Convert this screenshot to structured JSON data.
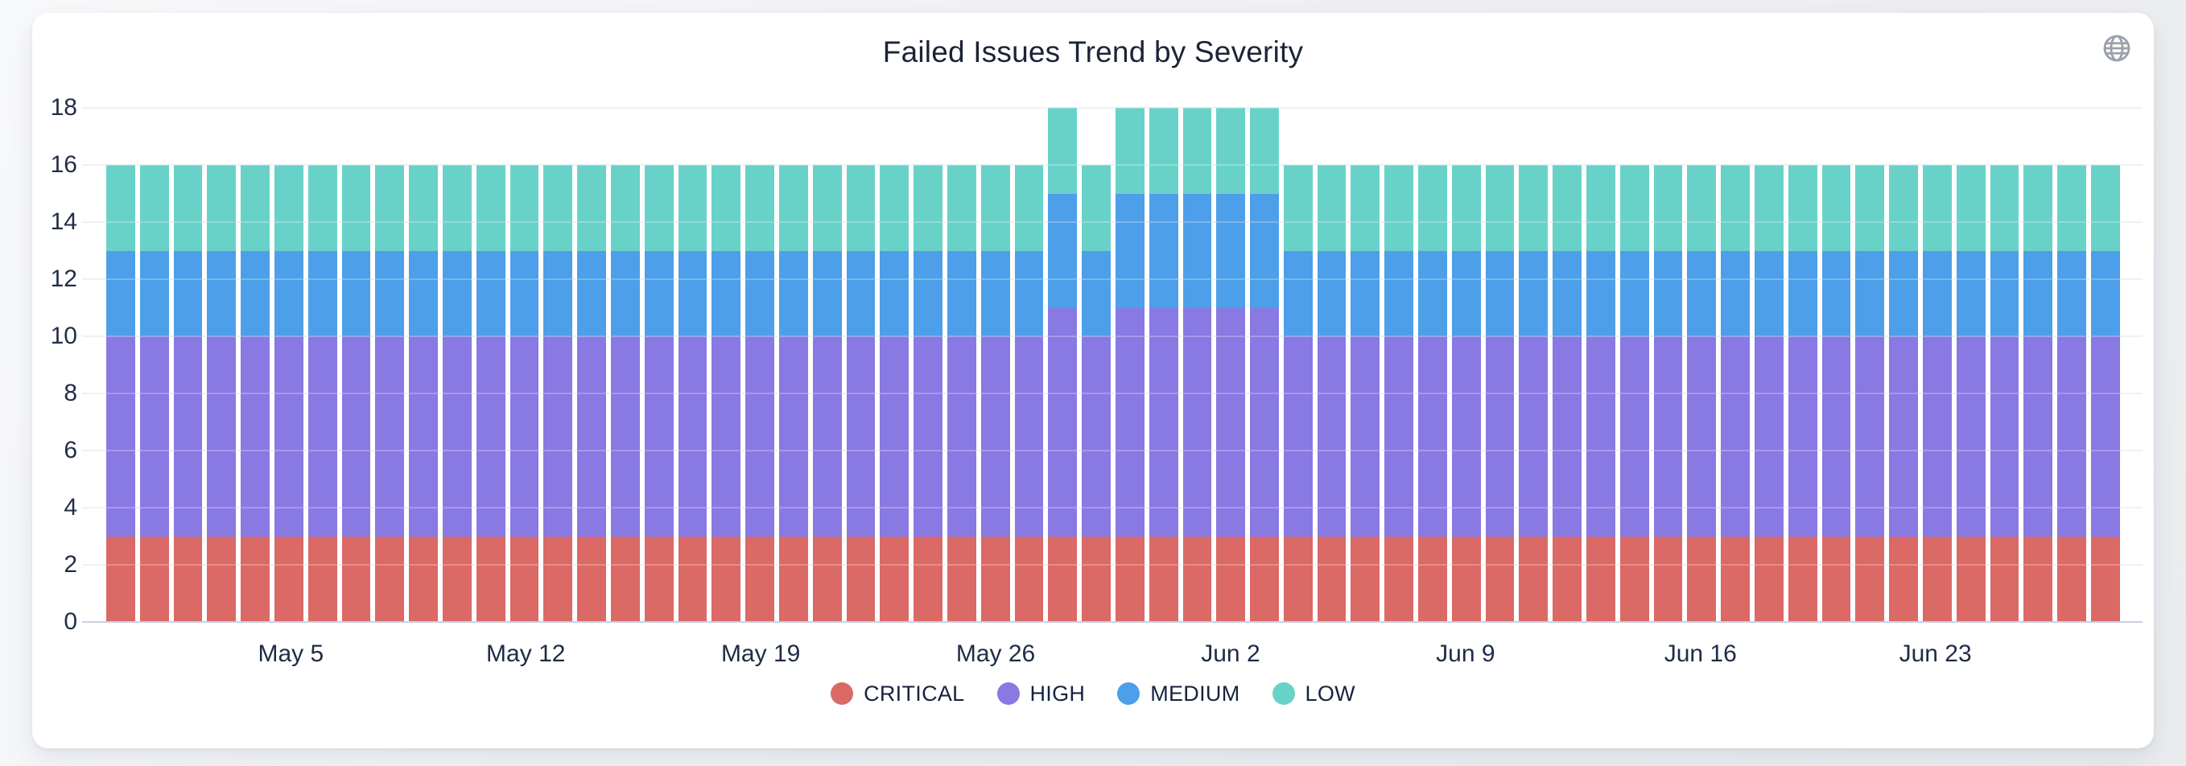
{
  "chart": {
    "title": "Failed Issues Trend by Severity",
    "background_color": "#ffffff",
    "gridline_color": "#ebecf0",
    "axis_line_color": "#c9d0e2",
    "text_color": "#202c46",
    "globe_icon_color": "#9aa1ab"
  },
  "chart_data": {
    "type": "bar",
    "stacked": true,
    "title": "Failed Issues Trend by Severity",
    "xlabel": "",
    "ylabel": "",
    "ylim": [
      0,
      18
    ],
    "yticks": [
      0,
      2,
      4,
      6,
      8,
      10,
      12,
      14,
      16,
      18
    ],
    "grid": true,
    "legend_position": "bottom",
    "x": [
      "Apr 30",
      "May 1",
      "May 2",
      "May 3",
      "May 4",
      "May 5",
      "May 6",
      "May 7",
      "May 8",
      "May 9",
      "May 10",
      "May 11",
      "May 12",
      "May 13",
      "May 14",
      "May 15",
      "May 16",
      "May 17",
      "May 18",
      "May 19",
      "May 20",
      "May 21",
      "May 22",
      "May 23",
      "May 24",
      "May 25",
      "May 26",
      "May 27",
      "May 28",
      "May 29",
      "May 30",
      "May 31",
      "Jun 1",
      "Jun 2",
      "Jun 3",
      "Jun 4",
      "Jun 5",
      "Jun 6",
      "Jun 7",
      "Jun 8",
      "Jun 9",
      "Jun 10",
      "Jun 11",
      "Jun 12",
      "Jun 13",
      "Jun 14",
      "Jun 15",
      "Jun 16",
      "Jun 17",
      "Jun 18",
      "Jun 19",
      "Jun 20",
      "Jun 21",
      "Jun 22",
      "Jun 23",
      "Jun 24",
      "Jun 25",
      "Jun 26",
      "Jun 27",
      "Jun 28"
    ],
    "xticks": [
      {
        "index": 5,
        "label": "May 5"
      },
      {
        "index": 12,
        "label": "May 12"
      },
      {
        "index": 19,
        "label": "May 19"
      },
      {
        "index": 26,
        "label": "May 26"
      },
      {
        "index": 33,
        "label": "Jun 2"
      },
      {
        "index": 40,
        "label": "Jun 9"
      },
      {
        "index": 47,
        "label": "Jun 16"
      },
      {
        "index": 54,
        "label": "Jun 23"
      }
    ],
    "series": [
      {
        "name": "CRITICAL",
        "color": "#DB6965",
        "values": [
          3,
          3,
          3,
          3,
          3,
          3,
          3,
          3,
          3,
          3,
          3,
          3,
          3,
          3,
          3,
          3,
          3,
          3,
          3,
          3,
          3,
          3,
          3,
          3,
          3,
          3,
          3,
          3,
          3,
          3,
          3,
          3,
          3,
          3,
          3,
          3,
          3,
          3,
          3,
          3,
          3,
          3,
          3,
          3,
          3,
          3,
          3,
          3,
          3,
          3,
          3,
          3,
          3,
          3,
          3,
          3,
          3,
          3,
          3,
          3
        ]
      },
      {
        "name": "HIGH",
        "color": "#8979E3",
        "values": [
          7,
          7,
          7,
          7,
          7,
          7,
          7,
          7,
          7,
          7,
          7,
          7,
          7,
          7,
          7,
          7,
          7,
          7,
          7,
          7,
          7,
          7,
          7,
          7,
          7,
          7,
          7,
          7,
          8,
          7,
          8,
          8,
          8,
          8,
          8,
          7,
          7,
          7,
          7,
          7,
          7,
          7,
          7,
          7,
          7,
          7,
          7,
          7,
          7,
          7,
          7,
          7,
          7,
          7,
          7,
          7,
          7,
          7,
          7,
          7
        ]
      },
      {
        "name": "MEDIUM",
        "color": "#4D9FE9",
        "values": [
          3,
          3,
          3,
          3,
          3,
          3,
          3,
          3,
          3,
          3,
          3,
          3,
          3,
          3,
          3,
          3,
          3,
          3,
          3,
          3,
          3,
          3,
          3,
          3,
          3,
          3,
          3,
          3,
          4,
          3,
          4,
          4,
          4,
          4,
          4,
          3,
          3,
          3,
          3,
          3,
          3,
          3,
          3,
          3,
          3,
          3,
          3,
          3,
          3,
          3,
          3,
          3,
          3,
          3,
          3,
          3,
          3,
          3,
          3,
          3
        ]
      },
      {
        "name": "LOW",
        "color": "#69D2C8",
        "values": [
          3,
          3,
          3,
          3,
          3,
          3,
          3,
          3,
          3,
          3,
          3,
          3,
          3,
          3,
          3,
          3,
          3,
          3,
          3,
          3,
          3,
          3,
          3,
          3,
          3,
          3,
          3,
          3,
          3,
          3,
          3,
          3,
          3,
          3,
          3,
          3,
          3,
          3,
          3,
          3,
          3,
          3,
          3,
          3,
          3,
          3,
          3,
          3,
          3,
          3,
          3,
          3,
          3,
          3,
          3,
          3,
          3,
          3,
          3,
          3
        ]
      }
    ]
  }
}
